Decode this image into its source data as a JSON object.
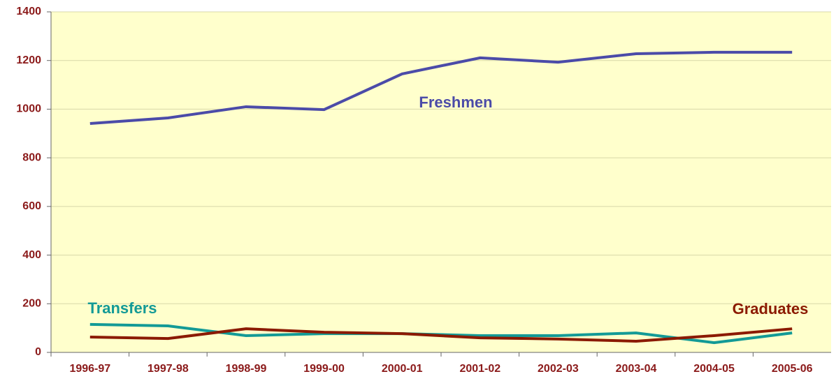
{
  "chart_data": {
    "type": "line",
    "categories": [
      "1996-97",
      "1997-98",
      "1998-99",
      "1999-00",
      "2000-01",
      "2001-02",
      "2002-03",
      "2003-04",
      "2004-05",
      "2005-06"
    ],
    "series": [
      {
        "name": "Freshmen",
        "color": "#4b4ba8",
        "values": [
          941,
          964,
          1010,
          998,
          1145,
          1211,
          1193,
          1228,
          1234,
          1234
        ]
      },
      {
        "name": "Transfers",
        "color": "#139a96",
        "values": [
          115,
          109,
          69,
          77,
          77,
          69,
          69,
          80,
          40,
          80
        ]
      },
      {
        "name": "Graduates",
        "color": "#8b1a00",
        "values": [
          63,
          57,
          97,
          83,
          77,
          60,
          55,
          46,
          69,
          97
        ]
      }
    ],
    "ylim": [
      0,
      1400
    ],
    "yticks": [
      0,
      200,
      400,
      600,
      800,
      1000,
      1200,
      1400
    ],
    "grid": true
  }
}
